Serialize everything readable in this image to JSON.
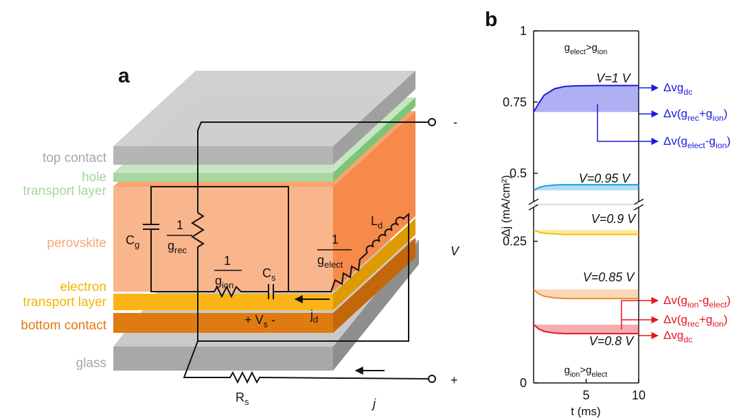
{
  "panel_a": {
    "label": "a",
    "layer_labels": [
      "top contact",
      "hole",
      "transport layer",
      "perovskite",
      "electron",
      "transport layer",
      "bottom contact",
      "glass"
    ],
    "C_g": [
      "C",
      "g"
    ],
    "g_rec": {
      "num": "1",
      "den": [
        "g",
        "rec"
      ]
    },
    "g_ion": {
      "num": "1",
      "den": [
        "g",
        "ion"
      ]
    },
    "C_s": [
      "C",
      "s"
    ],
    "g_elect": {
      "num": "1",
      "den": [
        "g",
        "elect"
      ]
    },
    "L_d": [
      "L",
      "d"
    ],
    "V": "V",
    "j_d": [
      "j",
      "d"
    ],
    "V_s": [
      "+ V",
      "s",
      " -"
    ],
    "R_s": [
      "R",
      "s"
    ],
    "j": "j",
    "minus": "-",
    "plus": "+"
  },
  "chart_data": {
    "type": "line",
    "label": "b",
    "x_label": "t (ms)",
    "y_label": "Δj (mA/cm²)",
    "xlim": [
      0,
      10
    ],
    "xticks": [
      5,
      10
    ],
    "ylim": [
      0,
      1
    ],
    "yticks": [
      0,
      0.25,
      0.5,
      0.75,
      1
    ],
    "ybreak": [
      0.31,
      0.4
    ],
    "x": [
      0,
      0.5,
      1,
      2,
      3,
      4,
      6,
      8,
      10
    ],
    "series": [
      {
        "name": "V=1 V",
        "color": "#1a1adf",
        "values": [
          0.715,
          0.746,
          0.774,
          0.797,
          0.805,
          0.807,
          0.808,
          0.808,
          0.808
        ]
      },
      {
        "name": "V=0.95 V",
        "color": "#1ba1e2",
        "values": [
          0.44,
          0.45,
          0.455,
          0.459,
          0.46,
          0.46,
          0.46,
          0.46,
          0.46
        ]
      },
      {
        "name": "V=0.9 V",
        "color": "#f2c200",
        "values": [
          0.27,
          0.266,
          0.264,
          0.263,
          0.262,
          0.262,
          0.262,
          0.262,
          0.262
        ]
      },
      {
        "name": "V=0.85 V",
        "color": "#f08c2e",
        "values": [
          0.165,
          0.157,
          0.153,
          0.15,
          0.149,
          0.149,
          0.149,
          0.149,
          0.149
        ]
      },
      {
        "name": "V=0.8 V",
        "color": "#e8141e",
        "values": [
          0.103,
          0.095,
          0.091,
          0.088,
          0.087,
          0.087,
          0.087,
          0.087,
          0.087
        ]
      }
    ],
    "regimes": [
      [
        "g",
        "elect",
        ">g",
        "ion"
      ],
      [
        "g",
        "ion",
        ">g",
        "elect"
      ]
    ],
    "annotations": [
      [
        "Δvg",
        "dc"
      ],
      [
        "Δv(g",
        "rec",
        "+g",
        "ion",
        ")"
      ],
      [
        "Δv(g",
        "elect",
        "-g",
        "ion",
        ")"
      ],
      [
        "Δv(g",
        "ion",
        "-g",
        "elect",
        ")"
      ],
      [
        "Δv(g",
        "rec",
        "+g",
        "ion",
        ")"
      ],
      [
        "Δvg",
        "dc"
      ]
    ]
  }
}
